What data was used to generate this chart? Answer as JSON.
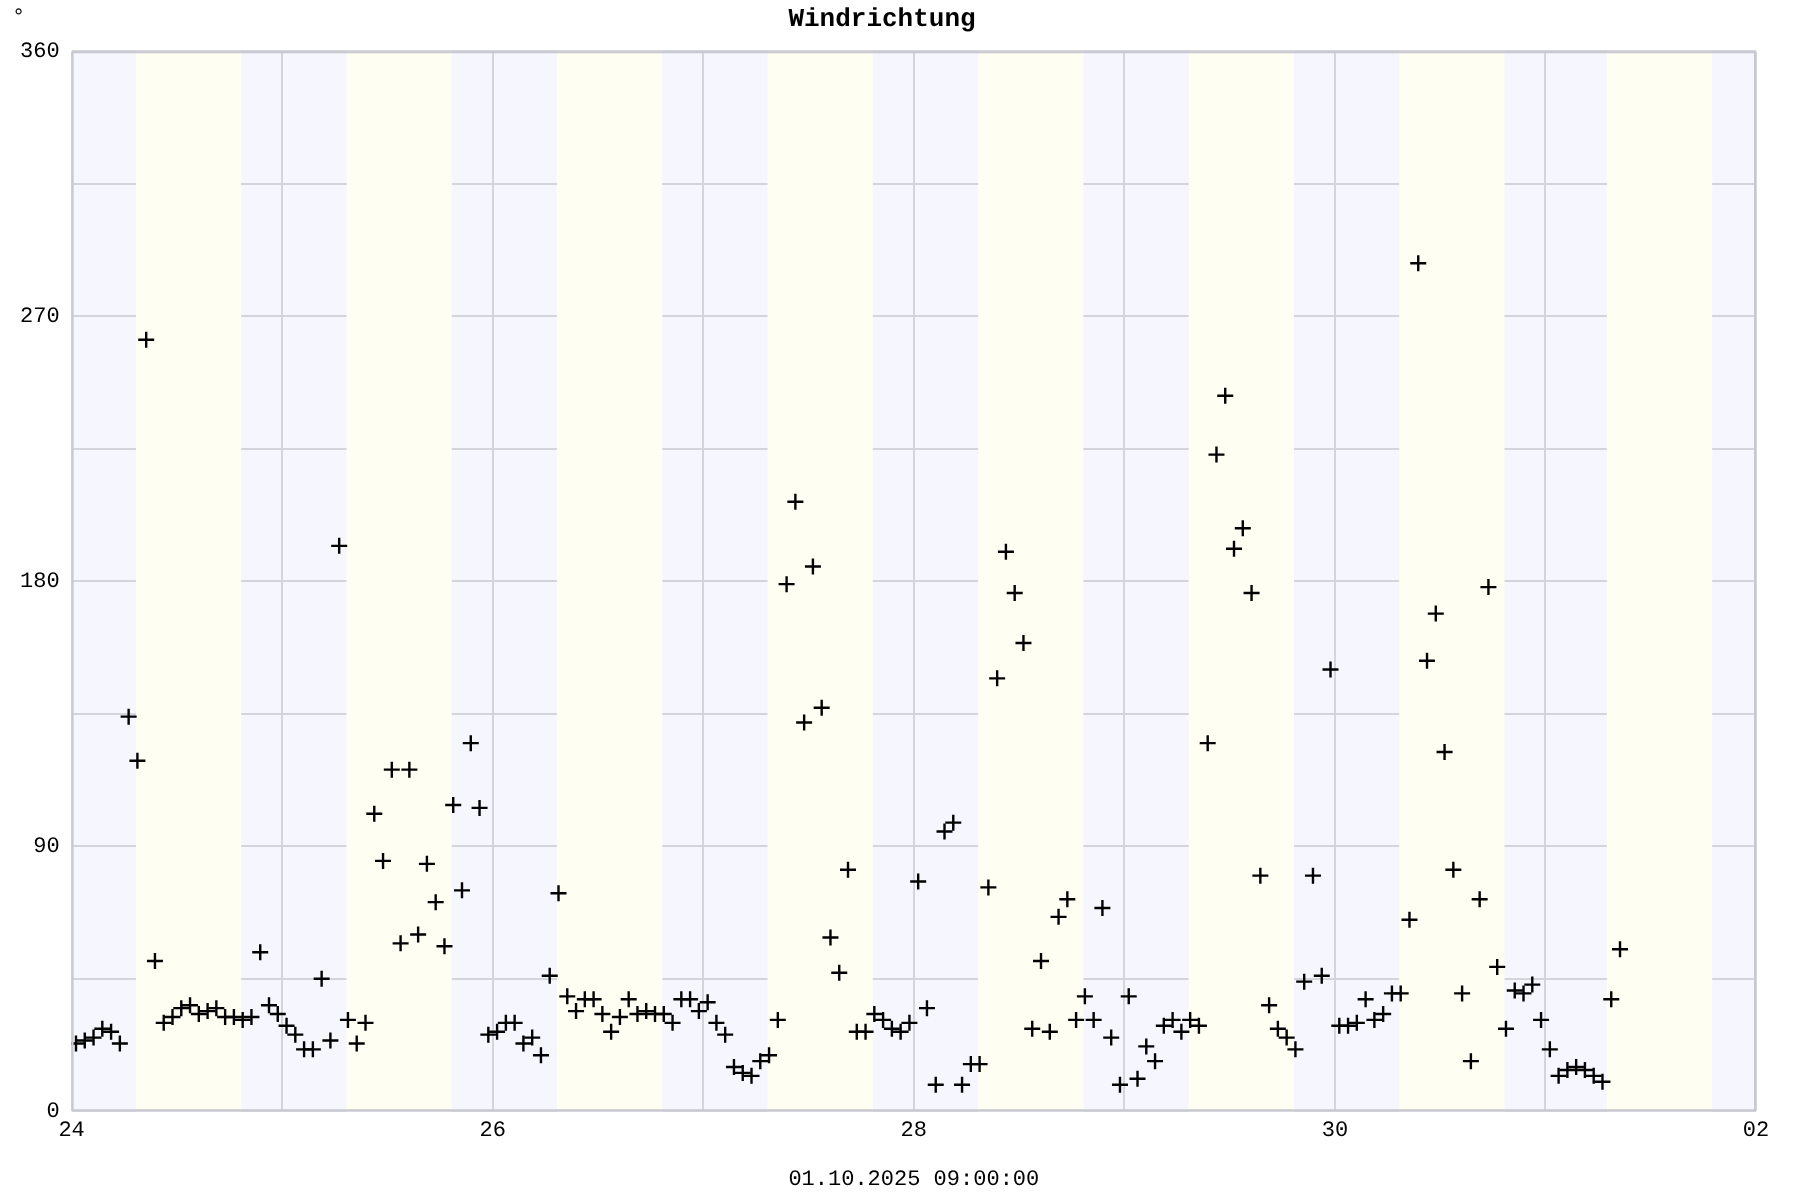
{
  "chart_data": {
    "type": "scatter",
    "title": "Windrichtung",
    "ylabel": "°",
    "xlabel": "01.10.2025 09:00:00",
    "xlim": [
      "2025-09-24",
      "2025-10-02"
    ],
    "xticks": [
      {
        "value": "2025-09-24",
        "label": "24"
      },
      {
        "value": "2025-09-25",
        "label": null
      },
      {
        "value": "2025-09-26",
        "label": "26"
      },
      {
        "value": "2025-09-27",
        "label": null
      },
      {
        "value": "2025-09-28",
        "label": "28"
      },
      {
        "value": "2025-09-29",
        "label": null
      },
      {
        "value": "2025-09-30",
        "label": "30"
      },
      {
        "value": "2025-10-01",
        "label": null
      },
      {
        "value": "2025-10-02",
        "label": "02"
      }
    ],
    "ylim": [
      0,
      360
    ],
    "yticks": [
      0,
      {
        "value": 45,
        "label": null
      },
      90,
      {
        "value": 135,
        "label": null
      },
      180,
      {
        "value": 225,
        "label": null
      },
      270,
      {
        "value": 315,
        "label": null
      },
      360
    ],
    "grid": true,
    "legend": false,
    "marker": "cross",
    "bands": [
      {
        "axis": "x",
        "from": "2025-09-24T07:20",
        "to": "2025-09-24T19:20",
        "color": "#fefef2"
      },
      {
        "axis": "x",
        "from": "2025-09-25T07:20",
        "to": "2025-09-25T19:20",
        "color": "#fefef2"
      },
      {
        "axis": "x",
        "from": "2025-09-26T07:20",
        "to": "2025-09-26T19:20",
        "color": "#fefef2"
      },
      {
        "axis": "x",
        "from": "2025-09-27T07:20",
        "to": "2025-09-27T19:20",
        "color": "#fefef2"
      },
      {
        "axis": "x",
        "from": "2025-09-28T07:20",
        "to": "2025-09-28T19:20",
        "color": "#fefef2"
      },
      {
        "axis": "x",
        "from": "2025-09-29T07:20",
        "to": "2025-09-29T19:20",
        "color": "#fefef2"
      },
      {
        "axis": "x",
        "from": "2025-09-30T07:20",
        "to": "2025-09-30T19:20",
        "color": "#fefef2"
      },
      {
        "axis": "x",
        "from": "2025-10-01T07:00",
        "to": "2025-10-01T19:00",
        "color": "#fefef2"
      }
    ],
    "series": [
      {
        "color": "#000000",
        "x": [
          "2025-09-24T00:30",
          "2025-09-24T01:30",
          "2025-09-24T02:30",
          "2025-09-24T03:30",
          "2025-09-24T04:30",
          "2025-09-24T05:30",
          "2025-09-24T06:30",
          "2025-09-24T07:30",
          "2025-09-24T08:30",
          "2025-09-24T09:30",
          "2025-09-24T10:30",
          "2025-09-24T11:30",
          "2025-09-24T12:30",
          "2025-09-24T13:30",
          "2025-09-24T14:30",
          "2025-09-24T15:30",
          "2025-09-24T16:30",
          "2025-09-24T17:30",
          "2025-09-24T18:30",
          "2025-09-24T19:30",
          "2025-09-24T20:30",
          "2025-09-24T21:30",
          "2025-09-24T22:30",
          "2025-09-24T23:30",
          "2025-09-25T00:30",
          "2025-09-25T01:30",
          "2025-09-25T02:30",
          "2025-09-25T03:30",
          "2025-09-25T04:30",
          "2025-09-25T05:30",
          "2025-09-25T06:30",
          "2025-09-25T07:30",
          "2025-09-25T08:30",
          "2025-09-25T09:30",
          "2025-09-25T10:30",
          "2025-09-25T11:30",
          "2025-09-25T12:30",
          "2025-09-25T13:30",
          "2025-09-25T14:30",
          "2025-09-25T15:30",
          "2025-09-25T16:30",
          "2025-09-25T17:30",
          "2025-09-25T18:30",
          "2025-09-25T19:30",
          "2025-09-25T20:30",
          "2025-09-25T21:30",
          "2025-09-25T22:30",
          "2025-09-25T23:30",
          "2025-09-26T00:30",
          "2025-09-26T01:30",
          "2025-09-26T02:30",
          "2025-09-26T03:30",
          "2025-09-26T04:30",
          "2025-09-26T05:30",
          "2025-09-26T06:30",
          "2025-09-26T07:30",
          "2025-09-26T08:30",
          "2025-09-26T09:30",
          "2025-09-26T10:30",
          "2025-09-26T11:30",
          "2025-09-26T12:30",
          "2025-09-26T13:30",
          "2025-09-26T14:30",
          "2025-09-26T15:30",
          "2025-09-26T16:30",
          "2025-09-26T17:30",
          "2025-09-26T18:30",
          "2025-09-26T19:30",
          "2025-09-26T20:30",
          "2025-09-26T21:30",
          "2025-09-26T22:30",
          "2025-09-26T23:30",
          "2025-09-27T00:30",
          "2025-09-27T01:30",
          "2025-09-27T02:30",
          "2025-09-27T03:30",
          "2025-09-27T04:30",
          "2025-09-27T05:30",
          "2025-09-27T06:30",
          "2025-09-27T07:30",
          "2025-09-27T08:30",
          "2025-09-27T09:30",
          "2025-09-27T10:30",
          "2025-09-27T11:30",
          "2025-09-27T12:30",
          "2025-09-27T13:30",
          "2025-09-27T14:30",
          "2025-09-27T15:30",
          "2025-09-27T16:30",
          "2025-09-27T17:30",
          "2025-09-27T18:30",
          "2025-09-27T19:30",
          "2025-09-27T20:30",
          "2025-09-27T21:30",
          "2025-09-27T22:30",
          "2025-09-27T23:30",
          "2025-09-28T00:30",
          "2025-09-28T01:30",
          "2025-09-28T02:30",
          "2025-09-28T03:30",
          "2025-09-28T04:30",
          "2025-09-28T05:30",
          "2025-09-28T06:30",
          "2025-09-28T07:30",
          "2025-09-28T08:30",
          "2025-09-28T09:30",
          "2025-09-28T10:30",
          "2025-09-28T11:30",
          "2025-09-28T12:30",
          "2025-09-28T13:30",
          "2025-09-28T14:30",
          "2025-09-28T15:30",
          "2025-09-28T16:30",
          "2025-09-28T17:30",
          "2025-09-28T18:30",
          "2025-09-28T19:30",
          "2025-09-28T20:30",
          "2025-09-28T21:30",
          "2025-09-28T22:30",
          "2025-09-28T23:30",
          "2025-09-29T00:30",
          "2025-09-29T01:30",
          "2025-09-29T02:30",
          "2025-09-29T03:30",
          "2025-09-29T04:30",
          "2025-09-29T05:30",
          "2025-09-29T06:30",
          "2025-09-29T07:30",
          "2025-09-29T08:30",
          "2025-09-29T09:30",
          "2025-09-29T10:30",
          "2025-09-29T11:30",
          "2025-09-29T12:30",
          "2025-09-29T13:30",
          "2025-09-29T14:30",
          "2025-09-29T15:30",
          "2025-09-29T16:30",
          "2025-09-29T17:30",
          "2025-09-29T18:30",
          "2025-09-29T19:30",
          "2025-09-29T20:30",
          "2025-09-29T21:30",
          "2025-09-29T22:30",
          "2025-09-29T23:30",
          "2025-09-30T00:30",
          "2025-09-30T01:30",
          "2025-09-30T02:30",
          "2025-09-30T03:30",
          "2025-09-30T04:30",
          "2025-09-30T05:30",
          "2025-09-30T06:30",
          "2025-09-30T07:30",
          "2025-09-30T08:30",
          "2025-09-30T09:30",
          "2025-09-30T10:30",
          "2025-09-30T11:30",
          "2025-09-30T12:30",
          "2025-09-30T13:30",
          "2025-09-30T14:30",
          "2025-09-30T15:30",
          "2025-09-30T16:30",
          "2025-09-30T17:30",
          "2025-09-30T18:30",
          "2025-09-30T19:30",
          "2025-09-30T20:30",
          "2025-09-30T21:30",
          "2025-09-30T22:30",
          "2025-09-30T23:30",
          "2025-10-01T00:30",
          "2025-10-01T01:30",
          "2025-10-01T02:30",
          "2025-10-01T03:30",
          "2025-10-01T04:30",
          "2025-10-01T05:30",
          "2025-10-01T06:30",
          "2025-10-01T07:30",
          "2025-10-01T08:30"
        ],
        "values": [
          23,
          24,
          25,
          28,
          27,
          23,
          134,
          119,
          262,
          51,
          30,
          32,
          35,
          36,
          33,
          34,
          35,
          32,
          32,
          31,
          32,
          54,
          36,
          33,
          29,
          26,
          21,
          21,
          45,
          24,
          192,
          31,
          23,
          30,
          101,
          85,
          116,
          57,
          116,
          60,
          84,
          71,
          56,
          104,
          75,
          125,
          103,
          26,
          27,
          30,
          30,
          23,
          25,
          19,
          46,
          74,
          39,
          34,
          38,
          38,
          33,
          27,
          32,
          38,
          33,
          34,
          33,
          33,
          30,
          38,
          38,
          34,
          37,
          30,
          26,
          15,
          13,
          12,
          17,
          19,
          31,
          179,
          207,
          132,
          185,
          137,
          59,
          47,
          82,
          27,
          27,
          33,
          31,
          28,
          27,
          30,
          78,
          35,
          9,
          95,
          98,
          9,
          16,
          16,
          76,
          147,
          190,
          176,
          159,
          28,
          51,
          27,
          66,
          72,
          31,
          39,
          31,
          69,
          25,
          9,
          39,
          11,
          22,
          17,
          29,
          31,
          27,
          31,
          29,
          125,
          223,
          243,
          191,
          198,
          176,
          80,
          36,
          28,
          25,
          21,
          44,
          80,
          46,
          150,
          29,
          29,
          30,
          38,
          31,
          33,
          40,
          40,
          65,
          288,
          153,
          169,
          122,
          82,
          40,
          17,
          72,
          178,
          49,
          28,
          41,
          40,
          43,
          31,
          21,
          12,
          14,
          15,
          14,
          12,
          10,
          38,
          55
        ]
      }
    ]
  }
}
